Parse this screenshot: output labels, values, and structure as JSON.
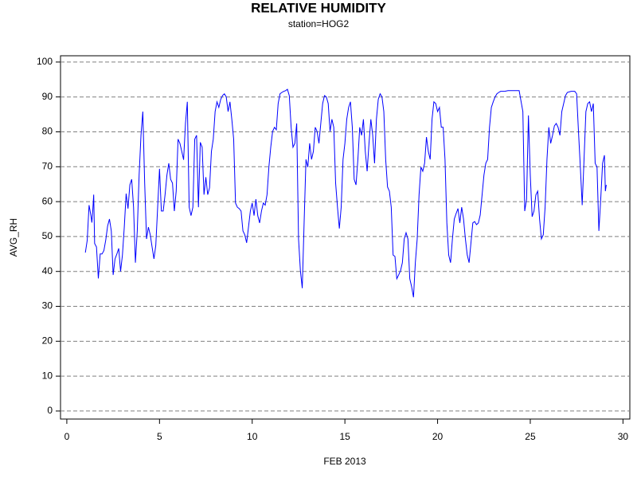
{
  "chart_data": {
    "type": "line",
    "title": "RELATIVE HUMIDITY",
    "subtitle": "station=HOG2",
    "x_label": "FEB 2013",
    "y_label": "AVG_RH",
    "color": "#0000ff",
    "grid": true,
    "xlim": [
      -0.34,
      30.37
    ],
    "ylim": [
      -2.3,
      101.8
    ],
    "xticks": [
      0,
      5,
      10,
      15,
      20,
      25,
      30
    ],
    "yticks": [
      0,
      10,
      20,
      30,
      40,
      50,
      60,
      70,
      80,
      90,
      100
    ],
    "x": [
      1.0,
      1.1,
      1.2,
      1.3,
      1.35,
      1.4,
      1.45,
      1.5,
      1.6,
      1.7,
      1.8,
      1.9,
      2.0,
      2.1,
      2.2,
      2.3,
      2.4,
      2.5,
      2.6,
      2.7,
      2.8,
      2.9,
      3.0,
      3.1,
      3.2,
      3.3,
      3.4,
      3.5,
      3.6,
      3.7,
      3.8,
      3.9,
      4.0,
      4.1,
      4.2,
      4.3,
      4.4,
      4.5,
      4.6,
      4.7,
      4.8,
      4.9,
      5.0,
      5.1,
      5.2,
      5.3,
      5.4,
      5.5,
      5.6,
      5.7,
      5.8,
      5.9,
      6.0,
      6.1,
      6.2,
      6.3,
      6.4,
      6.5,
      6.6,
      6.7,
      6.8,
      6.9,
      7.0,
      7.1,
      7.2,
      7.3,
      7.4,
      7.5,
      7.6,
      7.7,
      7.8,
      7.9,
      8.0,
      8.1,
      8.2,
      8.3,
      8.4,
      8.5,
      8.6,
      8.7,
      8.8,
      8.9,
      9.0,
      9.1,
      9.2,
      9.3,
      9.4,
      9.5,
      9.6,
      9.7,
      9.8,
      9.9,
      10.0,
      10.1,
      10.2,
      10.3,
      10.4,
      10.5,
      10.6,
      10.7,
      10.8,
      10.9,
      11.0,
      11.1,
      11.2,
      11.3,
      11.4,
      11.5,
      11.6,
      11.7,
      11.8,
      11.9,
      12.0,
      12.1,
      12.2,
      12.3,
      12.4,
      12.5,
      12.6,
      12.7,
      12.8,
      12.9,
      13.0,
      13.1,
      13.2,
      13.3,
      13.4,
      13.5,
      13.6,
      13.7,
      13.8,
      13.9,
      14.0,
      14.1,
      14.2,
      14.3,
      14.4,
      14.5,
      14.6,
      14.7,
      14.8,
      14.9,
      15.0,
      15.1,
      15.2,
      15.3,
      15.4,
      15.5,
      15.6,
      15.7,
      15.8,
      15.9,
      16.0,
      16.1,
      16.2,
      16.3,
      16.4,
      16.5,
      16.6,
      16.7,
      16.8,
      16.9,
      17.0,
      17.1,
      17.2,
      17.3,
      17.4,
      17.5,
      17.6,
      17.7,
      17.8,
      17.9,
      18.0,
      18.1,
      18.2,
      18.3,
      18.4,
      18.5,
      18.6,
      18.7,
      18.8,
      18.9,
      19.0,
      19.1,
      19.2,
      19.3,
      19.4,
      19.5,
      19.6,
      19.7,
      19.8,
      19.9,
      20.0,
      20.1,
      20.2,
      20.3,
      20.4,
      20.5,
      20.6,
      20.7,
      20.8,
      20.9,
      21.0,
      21.1,
      21.2,
      21.3,
      21.4,
      21.5,
      21.6,
      21.7,
      21.8,
      21.9,
      22.0,
      22.1,
      22.2,
      22.3,
      22.4,
      22.5,
      22.6,
      22.7,
      22.8,
      22.9,
      23.0,
      23.1,
      23.2,
      23.3,
      23.4,
      23.6,
      23.8,
      24.0,
      24.2,
      24.4,
      24.6,
      24.7,
      24.8,
      24.9,
      25.0,
      25.1,
      25.2,
      25.3,
      25.4,
      25.5,
      25.6,
      25.7,
      25.8,
      25.9,
      26.0,
      26.1,
      26.2,
      26.3,
      26.4,
      26.5,
      26.6,
      26.7,
      26.8,
      26.9,
      27.0,
      27.2,
      27.4,
      27.5,
      27.6,
      27.7,
      27.8,
      27.9,
      28.0,
      28.1,
      28.2,
      28.3,
      28.4,
      28.5,
      28.6,
      28.7,
      28.8,
      28.9,
      29.0,
      29.05,
      29.1
    ],
    "values": [
      45.4,
      48.9,
      59,
      56,
      54,
      57.5,
      62,
      48,
      47,
      38,
      45,
      45,
      46,
      49,
      53,
      55,
      51.6,
      39,
      43.6,
      45,
      46.6,
      40,
      44.7,
      52.7,
      62.3,
      58,
      64.8,
      66.4,
      58.4,
      42.5,
      51.6,
      67.6,
      79,
      85.8,
      65.3,
      49.3,
      52.7,
      50.5,
      47,
      43.6,
      47.5,
      58.4,
      69.4,
      57.3,
      57.3,
      62,
      67.6,
      71,
      66.4,
      65.3,
      57.3,
      63,
      77.9,
      76.7,
      74.4,
      72,
      82.4,
      88.6,
      58.4,
      56,
      58.4,
      77.9,
      79,
      58.4,
      77,
      75.6,
      62,
      67,
      62,
      64,
      74.4,
      77.9,
      85.8,
      88.6,
      87,
      89.3,
      90.4,
      90.9,
      90,
      85.8,
      88.6,
      83.6,
      77.9,
      59.6,
      58.4,
      58,
      57.3,
      51.6,
      50.5,
      48.2,
      52.7,
      57.3,
      59.6,
      56,
      60.7,
      56,
      53.9,
      57.3,
      59.6,
      59,
      62,
      69.9,
      75.6,
      80.1,
      81.3,
      80.6,
      88.1,
      90.9,
      91.3,
      91.6,
      91.8,
      92.2,
      90.4,
      81.3,
      75.6,
      76.7,
      82.4,
      49.3,
      40.2,
      35.2,
      53.9,
      72.1,
      69.9,
      76.7,
      72.1,
      74.4,
      81.3,
      80.1,
      76.7,
      82.4,
      88.1,
      90.4,
      90,
      88.1,
      80.1,
      83.6,
      81.3,
      65.3,
      58.4,
      52.3,
      58.4,
      72.1,
      76.7,
      83.6,
      87,
      88.6,
      81.3,
      66.4,
      64.8,
      72.1,
      81.3,
      79,
      83.6,
      74.4,
      68.7,
      76.7,
      83.6,
      79,
      71,
      83.6,
      89.3,
      90.9,
      90,
      85.8,
      72.1,
      64.2,
      63,
      58.4,
      44.7,
      44.3,
      37.9,
      39,
      40.2,
      42.5,
      49.3,
      51.1,
      49.3,
      37.9,
      35.6,
      32.6,
      42.5,
      49.3,
      61.9,
      69.9,
      68.7,
      71,
      78.5,
      74.4,
      72.1,
      83.6,
      88.6,
      88.1,
      85.8,
      87,
      81.3,
      81.3,
      72.1,
      53.9,
      44.7,
      42.5,
      49.3,
      55,
      56.6,
      58,
      53.9,
      58.4,
      55,
      49.3,
      44.7,
      42.5,
      48.2,
      53.9,
      54.3,
      53.4,
      53.9,
      56.2,
      61.9,
      67.6,
      71,
      72.1,
      81.3,
      87,
      88.6,
      90,
      90.9,
      91.3,
      91.6,
      91.6,
      91.8,
      91.8,
      91.8,
      91.8,
      85.8,
      57.3,
      60.7,
      84.7,
      67.6,
      55.7,
      57.3,
      61.9,
      63,
      55,
      49.3,
      50.5,
      58.4,
      72.1,
      81.3,
      76.7,
      79,
      81.7,
      82.4,
      81.3,
      79,
      85.8,
      88.1,
      90.4,
      91.3,
      91.6,
      91.6,
      90.9,
      80.1,
      69.9,
      59,
      72.1,
      85.8,
      88.1,
      88.6,
      85.8,
      88.1,
      71,
      69.9,
      51.6,
      60.7,
      71,
      73.3,
      63,
      64.8
    ]
  }
}
